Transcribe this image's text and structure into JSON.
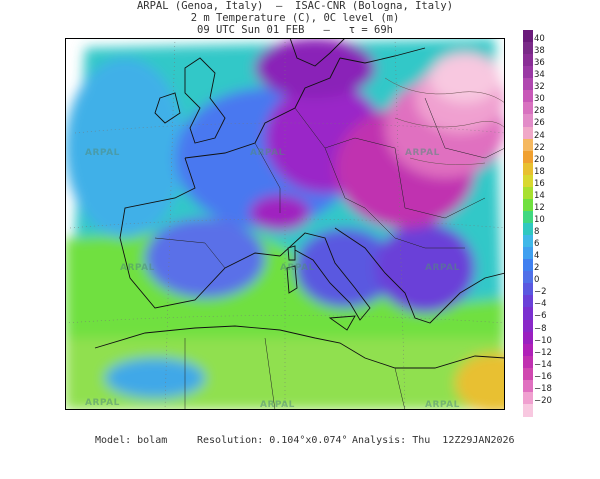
{
  "header": {
    "line1": "ARPAL (Genoa, Italy)  —  ISAC-CNR (Bologna, Italy)",
    "line2": "2 m Temperature (C), 0C level (m)",
    "line3": "09 UTC Sun 01 FEB   —   τ = 69h"
  },
  "watermark_text": "ARPAL",
  "colorbar": {
    "labels": [
      "40",
      "38",
      "36",
      "34",
      "32",
      "30",
      "28",
      "26",
      "24",
      "22",
      "20",
      "18",
      "16",
      "14",
      "12",
      "10",
      "8",
      "6",
      "4",
      "2",
      "0",
      "−2",
      "−4",
      "−6",
      "−8",
      "−10",
      "−12",
      "−14",
      "−16",
      "−18",
      "−20"
    ],
    "colors": [
      "#6a1a7a",
      "#7a2a88",
      "#8a2e96",
      "#9a38a4",
      "#b048b0",
      "#c858b8",
      "#d872c0",
      "#e28cc8",
      "#f0a8c8",
      "#f5b860",
      "#f0a030",
      "#e8c030",
      "#d8d830",
      "#a8e030",
      "#70e040",
      "#40d880",
      "#30c8c0",
      "#40b8e8",
      "#40a0f0",
      "#4080f0",
      "#5070e8",
      "#5a58e0",
      "#6a40d8",
      "#7a30d0",
      "#8a28c8",
      "#9a20c0",
      "#b020b8",
      "#c030b0",
      "#d048b0",
      "#e070c0",
      "#f0a0d0",
      "#f8c8e0"
    ]
  },
  "footer": {
    "model": "Model: bolam",
    "resolution": "Resolution: 0.104°x0.074°",
    "analysis": "Analysis: Thu  12Z29JAN2026"
  }
}
